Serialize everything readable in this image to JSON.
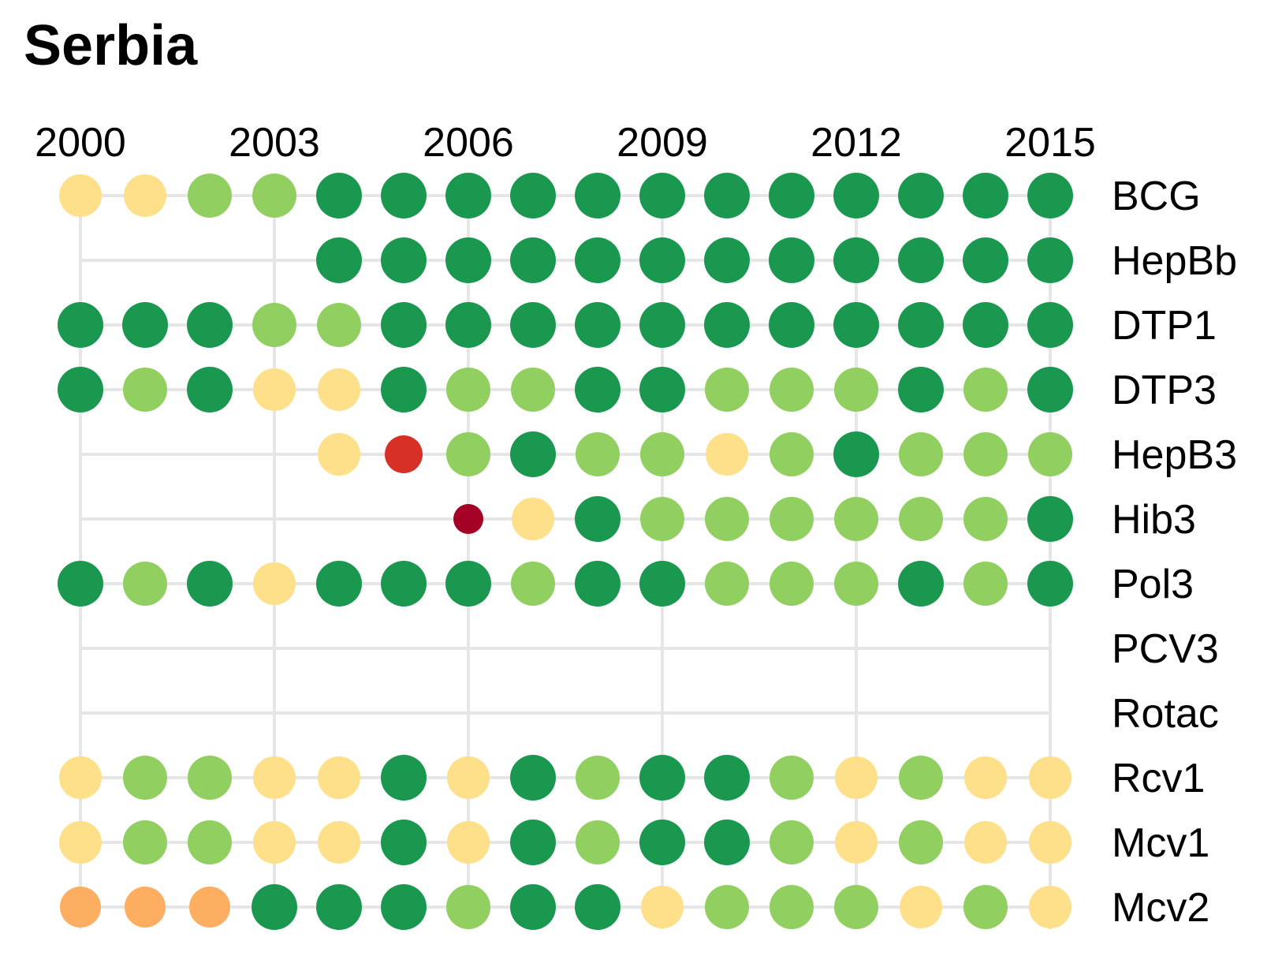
{
  "chart_data": {
    "type": "scatter",
    "title": "Serbia",
    "years": [
      2000,
      2001,
      2002,
      2003,
      2004,
      2005,
      2006,
      2007,
      2008,
      2009,
      2010,
      2011,
      2012,
      2013,
      2014,
      2015
    ],
    "x_tick_labels": [
      "2000",
      "2003",
      "2006",
      "2009",
      "2012",
      "2015"
    ],
    "x_tick_years": [
      2000,
      2003,
      2006,
      2009,
      2012,
      2015
    ],
    "x_grid_years": [
      2000,
      2003,
      2006,
      2009,
      2012,
      2015
    ],
    "colors": {
      "dark_green": "#1a9850",
      "light_green": "#91cf60",
      "pale_yellow": "#fee08b",
      "orange": "#fdae61",
      "red": "#d73027",
      "dark_red": "#a50026",
      "grid": "#e6e6e6"
    },
    "series": [
      {
        "name": "BCG",
        "values": [
          "pale_yellow",
          "pale_yellow",
          "light_green",
          "light_green",
          "dark_green",
          "dark_green",
          "dark_green",
          "dark_green",
          "dark_green",
          "dark_green",
          "dark_green",
          "dark_green",
          "dark_green",
          "dark_green",
          "dark_green",
          "dark_green"
        ]
      },
      {
        "name": "HepBb",
        "values": [
          null,
          null,
          null,
          null,
          "dark_green",
          "dark_green",
          "dark_green",
          "dark_green",
          "dark_green",
          "dark_green",
          "dark_green",
          "dark_green",
          "dark_green",
          "dark_green",
          "dark_green",
          "dark_green"
        ]
      },
      {
        "name": "DTP1",
        "values": [
          "dark_green",
          "dark_green",
          "dark_green",
          "light_green",
          "light_green",
          "dark_green",
          "dark_green",
          "dark_green",
          "dark_green",
          "dark_green",
          "dark_green",
          "dark_green",
          "dark_green",
          "dark_green",
          "dark_green",
          "dark_green"
        ]
      },
      {
        "name": "DTP3",
        "values": [
          "dark_green",
          "light_green",
          "dark_green",
          "pale_yellow",
          "pale_yellow",
          "dark_green",
          "light_green",
          "light_green",
          "dark_green",
          "dark_green",
          "light_green",
          "light_green",
          "light_green",
          "dark_green",
          "light_green",
          "dark_green"
        ]
      },
      {
        "name": "HepB3",
        "values": [
          null,
          null,
          null,
          null,
          "pale_yellow",
          "red",
          "light_green",
          "dark_green",
          "light_green",
          "light_green",
          "pale_yellow",
          "light_green",
          "dark_green",
          "light_green",
          "light_green",
          "light_green"
        ]
      },
      {
        "name": "Hib3",
        "values": [
          null,
          null,
          null,
          null,
          null,
          null,
          "dark_red",
          "pale_yellow",
          "dark_green",
          "light_green",
          "light_green",
          "light_green",
          "light_green",
          "light_green",
          "light_green",
          "dark_green"
        ]
      },
      {
        "name": "Pol3",
        "values": [
          "dark_green",
          "light_green",
          "dark_green",
          "pale_yellow",
          "dark_green",
          "dark_green",
          "dark_green",
          "light_green",
          "dark_green",
          "dark_green",
          "light_green",
          "light_green",
          "light_green",
          "dark_green",
          "light_green",
          "dark_green"
        ]
      },
      {
        "name": "PCV3",
        "values": [
          null,
          null,
          null,
          null,
          null,
          null,
          null,
          null,
          null,
          null,
          null,
          null,
          null,
          null,
          null,
          null
        ]
      },
      {
        "name": "Rotac",
        "values": [
          null,
          null,
          null,
          null,
          null,
          null,
          null,
          null,
          null,
          null,
          null,
          null,
          null,
          null,
          null,
          null
        ]
      },
      {
        "name": "Rcv1",
        "values": [
          "pale_yellow",
          "light_green",
          "light_green",
          "pale_yellow",
          "pale_yellow",
          "dark_green",
          "pale_yellow",
          "dark_green",
          "light_green",
          "dark_green",
          "dark_green",
          "light_green",
          "pale_yellow",
          "light_green",
          "pale_yellow",
          "pale_yellow"
        ]
      },
      {
        "name": "Mcv1",
        "values": [
          "pale_yellow",
          "light_green",
          "light_green",
          "pale_yellow",
          "pale_yellow",
          "dark_green",
          "pale_yellow",
          "dark_green",
          "light_green",
          "dark_green",
          "dark_green",
          "light_green",
          "pale_yellow",
          "light_green",
          "pale_yellow",
          "pale_yellow"
        ]
      },
      {
        "name": "Mcv2",
        "values": [
          "orange",
          "orange",
          "orange",
          "dark_green",
          "dark_green",
          "dark_green",
          "light_green",
          "dark_green",
          "dark_green",
          "pale_yellow",
          "light_green",
          "light_green",
          "light_green",
          "pale_yellow",
          "light_green",
          "pale_yellow"
        ]
      }
    ],
    "grid": true,
    "legend": "none"
  }
}
